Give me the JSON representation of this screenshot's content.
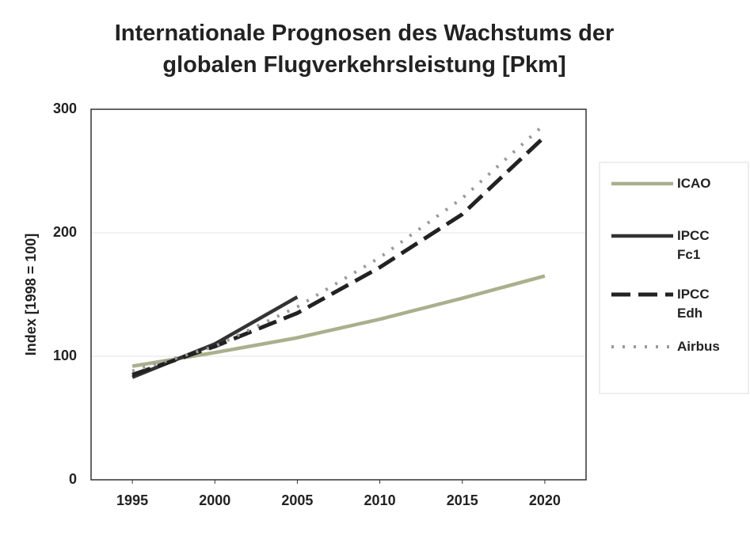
{
  "chart_data": {
    "type": "line",
    "title": [
      "Internationale Prognosen des Wachstums der",
      "globalen Flugverkehrsleistung [Pkm]"
    ],
    "ylabel": "Index [1998 = 100]",
    "x": [
      1995,
      2000,
      2005,
      2010,
      2015,
      2020
    ],
    "series": [
      {
        "name": "ICAO",
        "color": "#a9b08c",
        "style": "solid",
        "values": [
          92,
          103,
          115,
          130,
          147,
          165
        ]
      },
      {
        "name": "IPCC Fc1",
        "color": "#333333",
        "style": "solid",
        "values": [
          83,
          110,
          148,
          null,
          null,
          null
        ]
      },
      {
        "name": "IPCC Edh",
        "color": "#222222",
        "style": "dashed",
        "values": [
          85,
          108,
          135,
          172,
          215,
          278
        ]
      },
      {
        "name": "Airbus",
        "color": "#9a9a9a",
        "style": "dotted",
        "values": [
          88,
          108,
          140,
          180,
          228,
          288
        ]
      }
    ],
    "xlim": [
      1992.5,
      2022.5
    ],
    "xticks": [
      1995,
      2000,
      2005,
      2010,
      2015,
      2020
    ],
    "ylim": [
      0,
      300
    ],
    "yticks": [
      0,
      100,
      200,
      300
    ],
    "grid": true,
    "legend": "right"
  }
}
